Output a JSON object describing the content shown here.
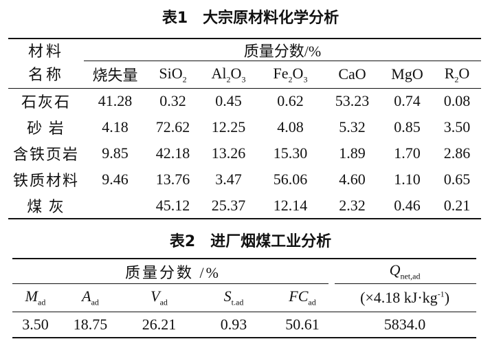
{
  "table1": {
    "title": "表1　大宗原材料化学分析",
    "row_header": [
      "材料",
      "名称"
    ],
    "group_header": "质量分数/%",
    "columns": [
      [
        "烧失量"
      ],
      [
        "SiO",
        "2"
      ],
      [
        "Al",
        "2",
        "O",
        "3"
      ],
      [
        "Fe",
        "2",
        "O",
        "3"
      ],
      [
        "CaO"
      ],
      [
        "MgO"
      ],
      [
        "R",
        "2",
        "O"
      ]
    ],
    "rows": [
      [
        "石灰石",
        "41.28",
        "0.32",
        "0.45",
        "0.62",
        "53.23",
        "0.74",
        "0.08"
      ],
      [
        "砂 岩",
        "4.18",
        "72.62",
        "12.25",
        "4.08",
        "5.32",
        "0.85",
        "3.50"
      ],
      [
        "含铁页岩",
        "9.85",
        "42.18",
        "13.26",
        "15.30",
        "1.89",
        "1.70",
        "2.86"
      ],
      [
        "铁质材料",
        "9.46",
        "13.76",
        "3.47",
        "56.06",
        "4.60",
        "1.10",
        "0.65"
      ],
      [
        "煤 灰",
        null,
        "45.12",
        "25.37",
        "12.14",
        "2.32",
        "0.46",
        "0.21"
      ]
    ]
  },
  "table2": {
    "title": "表2　进厂烟煤工业分析",
    "group_header": "质量分数 /%",
    "columns": [
      [
        "M",
        "ad"
      ],
      [
        "A",
        "ad"
      ],
      [
        "V",
        "ad"
      ],
      [
        "S",
        "t.ad"
      ],
      [
        "FC",
        "ad"
      ]
    ],
    "q_header": [
      "Q",
      "net,ad"
    ],
    "q_unit": [
      "(×4.18 kJ·kg",
      "-1",
      ")"
    ],
    "values": [
      "3.50",
      "18.75",
      "26.21",
      "0.93",
      "50.61",
      "5834.0"
    ]
  }
}
